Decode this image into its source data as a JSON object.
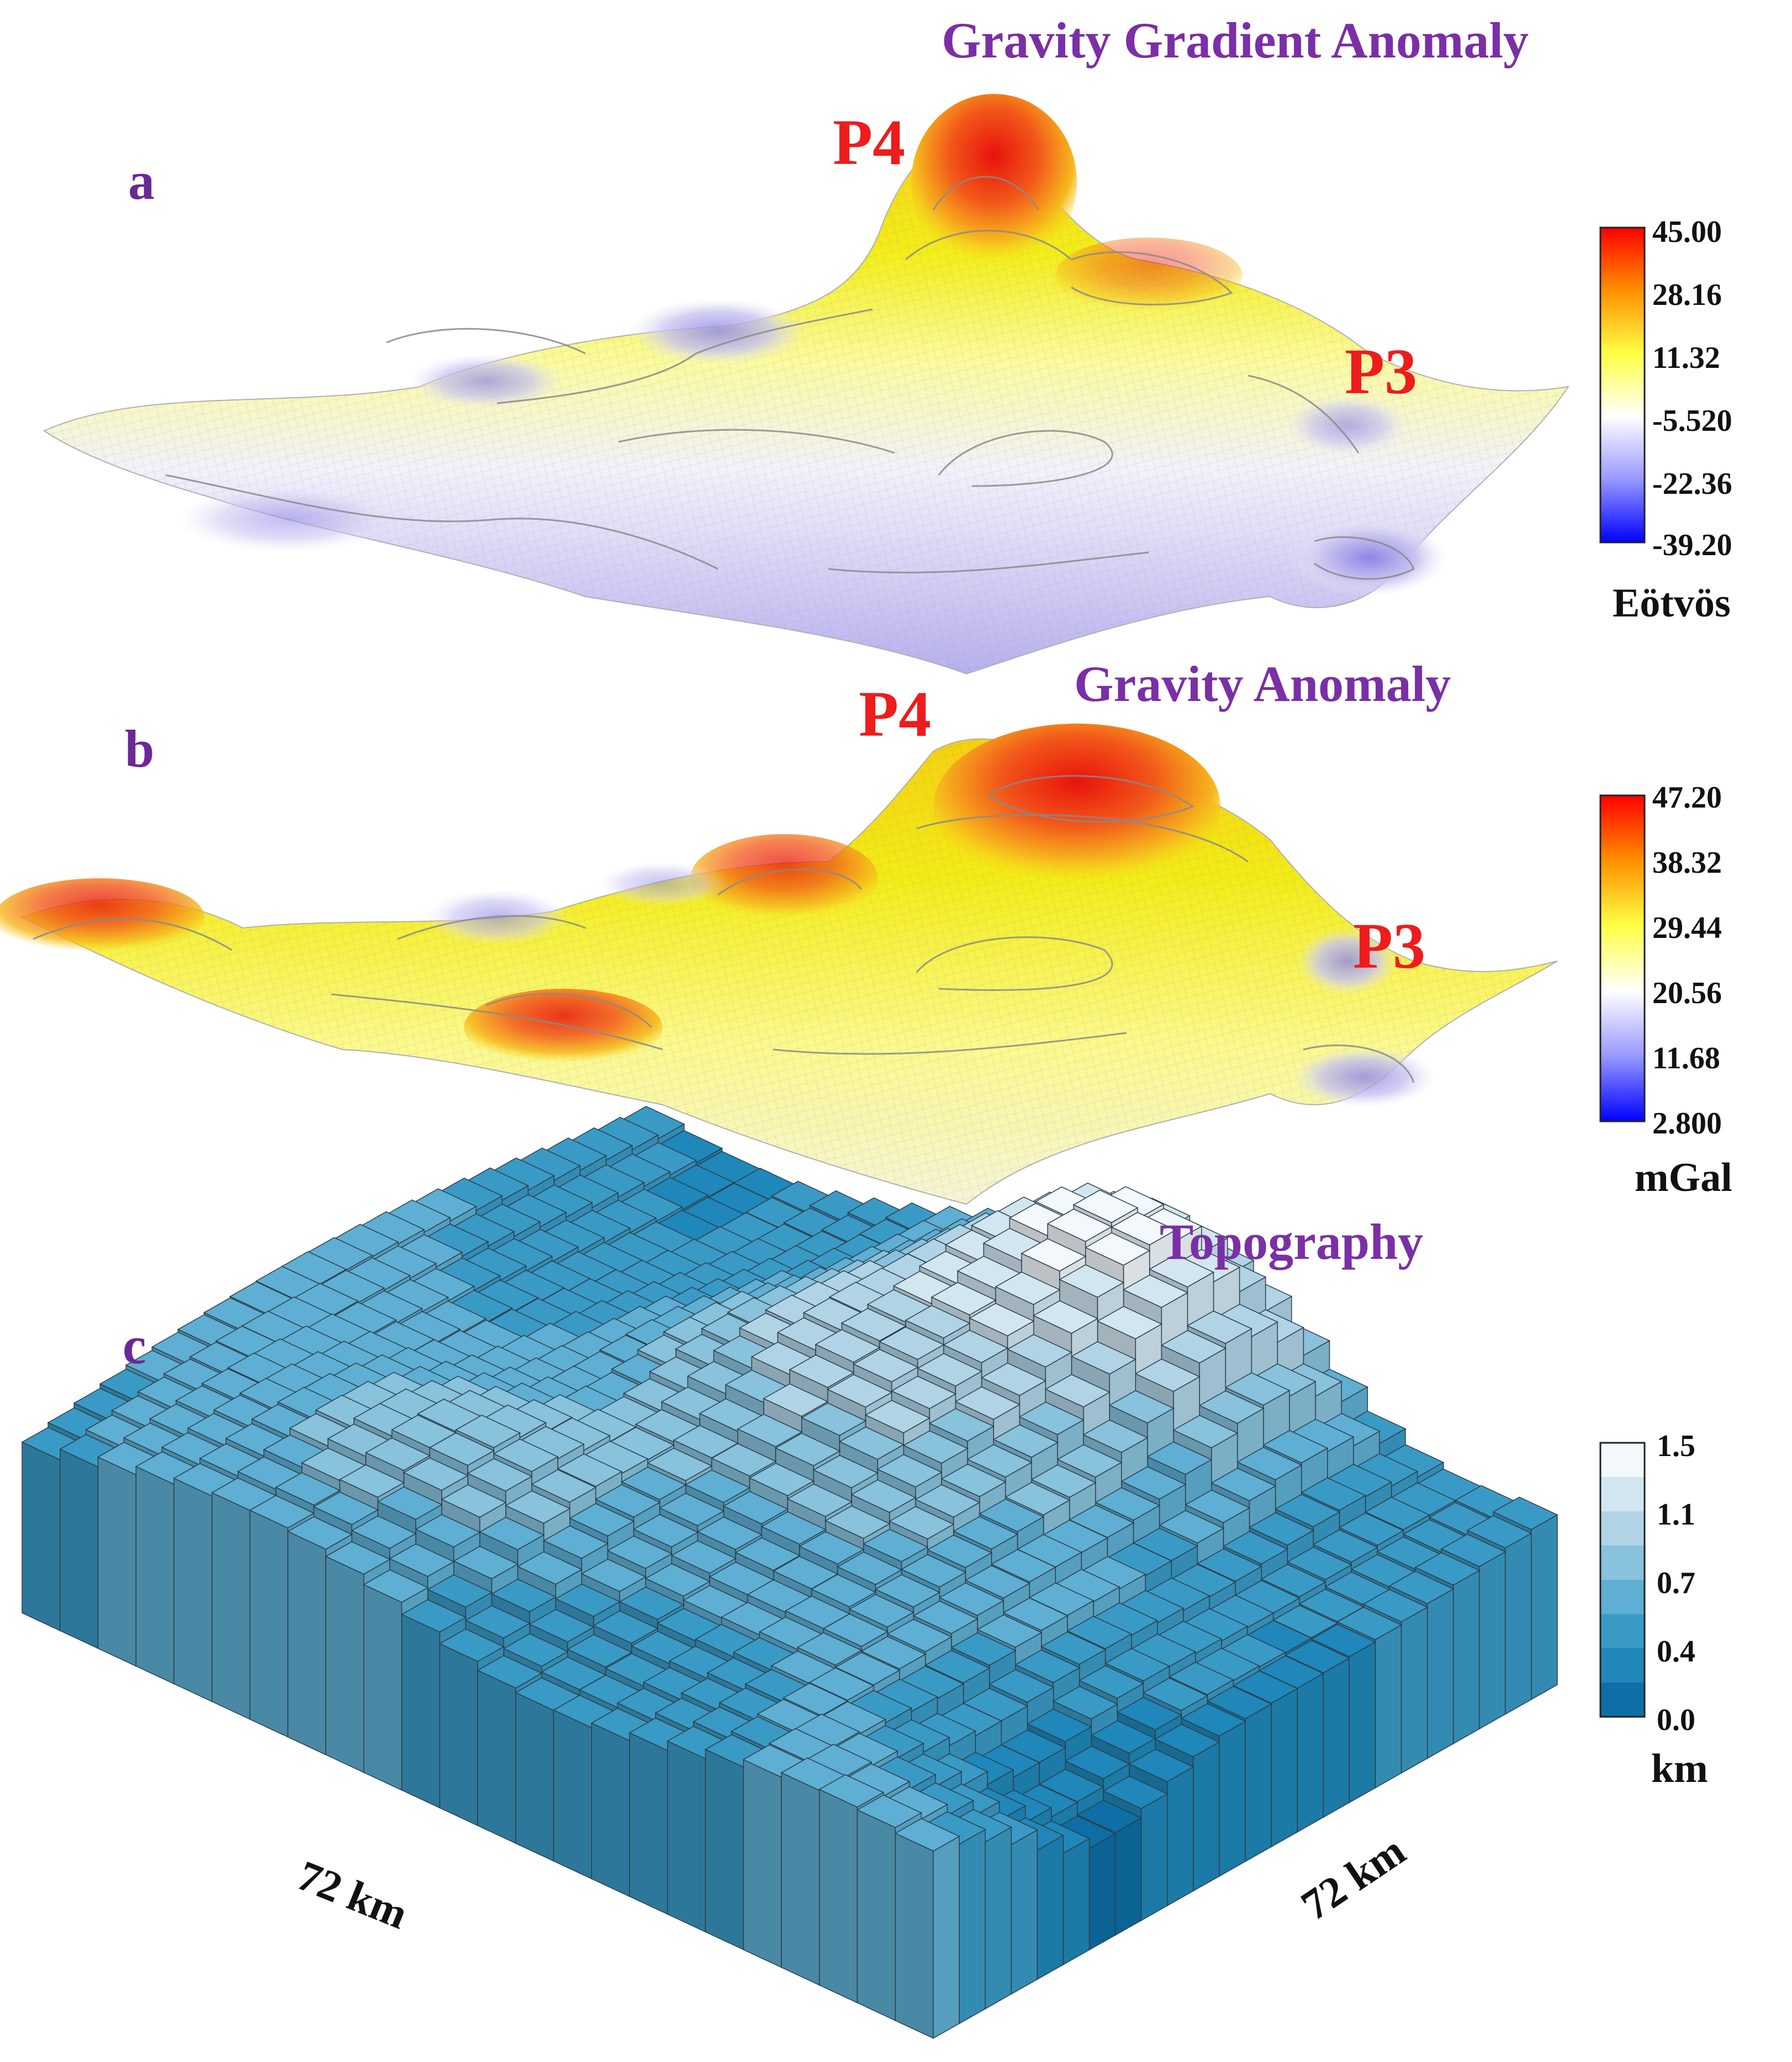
{
  "chart_data": [
    {
      "panel": "a",
      "type": "surface",
      "title": "Gravity Gradient Anomaly",
      "peak_labels": [
        "P4",
        "P3"
      ],
      "colorbar": {
        "ticks": [
          "45.00",
          "28.16",
          "11.32",
          "-5.520",
          "-22.36",
          "-39.20"
        ],
        "range": [
          -39.2,
          45.0
        ],
        "unit": "Eötvös",
        "colors": [
          "#ff0000",
          "#ffcc00",
          "#ffff66",
          "#ffffff",
          "#9999ff",
          "#0000ff"
        ]
      }
    },
    {
      "panel": "b",
      "type": "surface",
      "title": "Gravity Anomaly",
      "peak_labels": [
        "P4",
        "P3"
      ],
      "colorbar": {
        "ticks": [
          "47.20",
          "38.32",
          "29.44",
          "20.56",
          "11.68",
          "2.800"
        ],
        "range": [
          2.8,
          47.2
        ],
        "unit": "mGal",
        "colors": [
          "#ff0000",
          "#ffcc00",
          "#ffff66",
          "#ffffff",
          "#9999ff",
          "#0000ff"
        ]
      }
    },
    {
      "panel": "c",
      "type": "bar3d",
      "title": "Topography",
      "xlabel": "72 km",
      "ylabel": "72 km",
      "colorbar": {
        "ticks": [
          "1.5",
          "1.1",
          "0.7",
          "0.4",
          "0.0"
        ],
        "range": [
          0.0,
          1.5
        ],
        "unit": "km",
        "colors": [
          "#f2f8fc",
          "#d2e6f0",
          "#b0d4e6",
          "#88c2dc",
          "#5eafd3",
          "#3a9ac6",
          "#1f87ba",
          "#0d6fa5"
        ]
      }
    }
  ]
}
